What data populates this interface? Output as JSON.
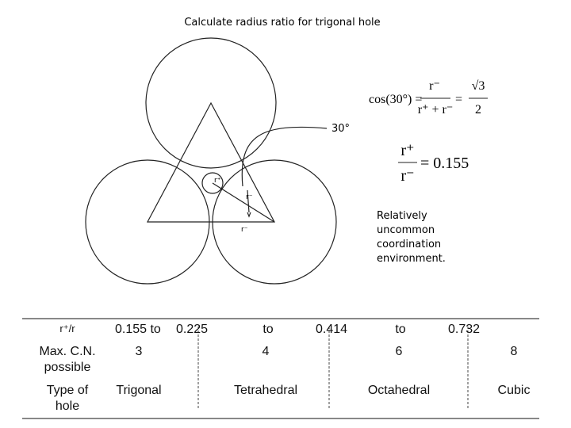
{
  "title": "Calculate radius ratio for trigonal hole",
  "diagram": {
    "angle_label": "30°",
    "labels": [
      "r⁺",
      "r⁻",
      "r⁻"
    ]
  },
  "equation_1": {
    "lhs": "cos(30°) =",
    "numerator": "r⁻",
    "denominator": "r⁺ + r⁻",
    "equals": "=",
    "numerator_2": "√3",
    "denominator_2": "2"
  },
  "equation_2": {
    "numerator": "r⁺",
    "denominator": "r⁻",
    "rhs": "= 0.155"
  },
  "note": [
    "Relatively",
    "uncommon",
    "coordination",
    "environment."
  ],
  "table": {
    "header": [
      "r⁺/r",
      "0.155 to",
      "0.225",
      "to",
      "0.414",
      "to",
      "0.732"
    ],
    "rows": [
      {
        "label": [
          "Max. C.N.",
          "possible"
        ],
        "cells": [
          "3",
          "4",
          "6",
          "8"
        ]
      },
      {
        "label": [
          "Type of",
          "hole"
        ],
        "cells": [
          "Trigonal",
          "Tetrahedral",
          "Octahedral",
          "Cubic"
        ]
      }
    ]
  }
}
